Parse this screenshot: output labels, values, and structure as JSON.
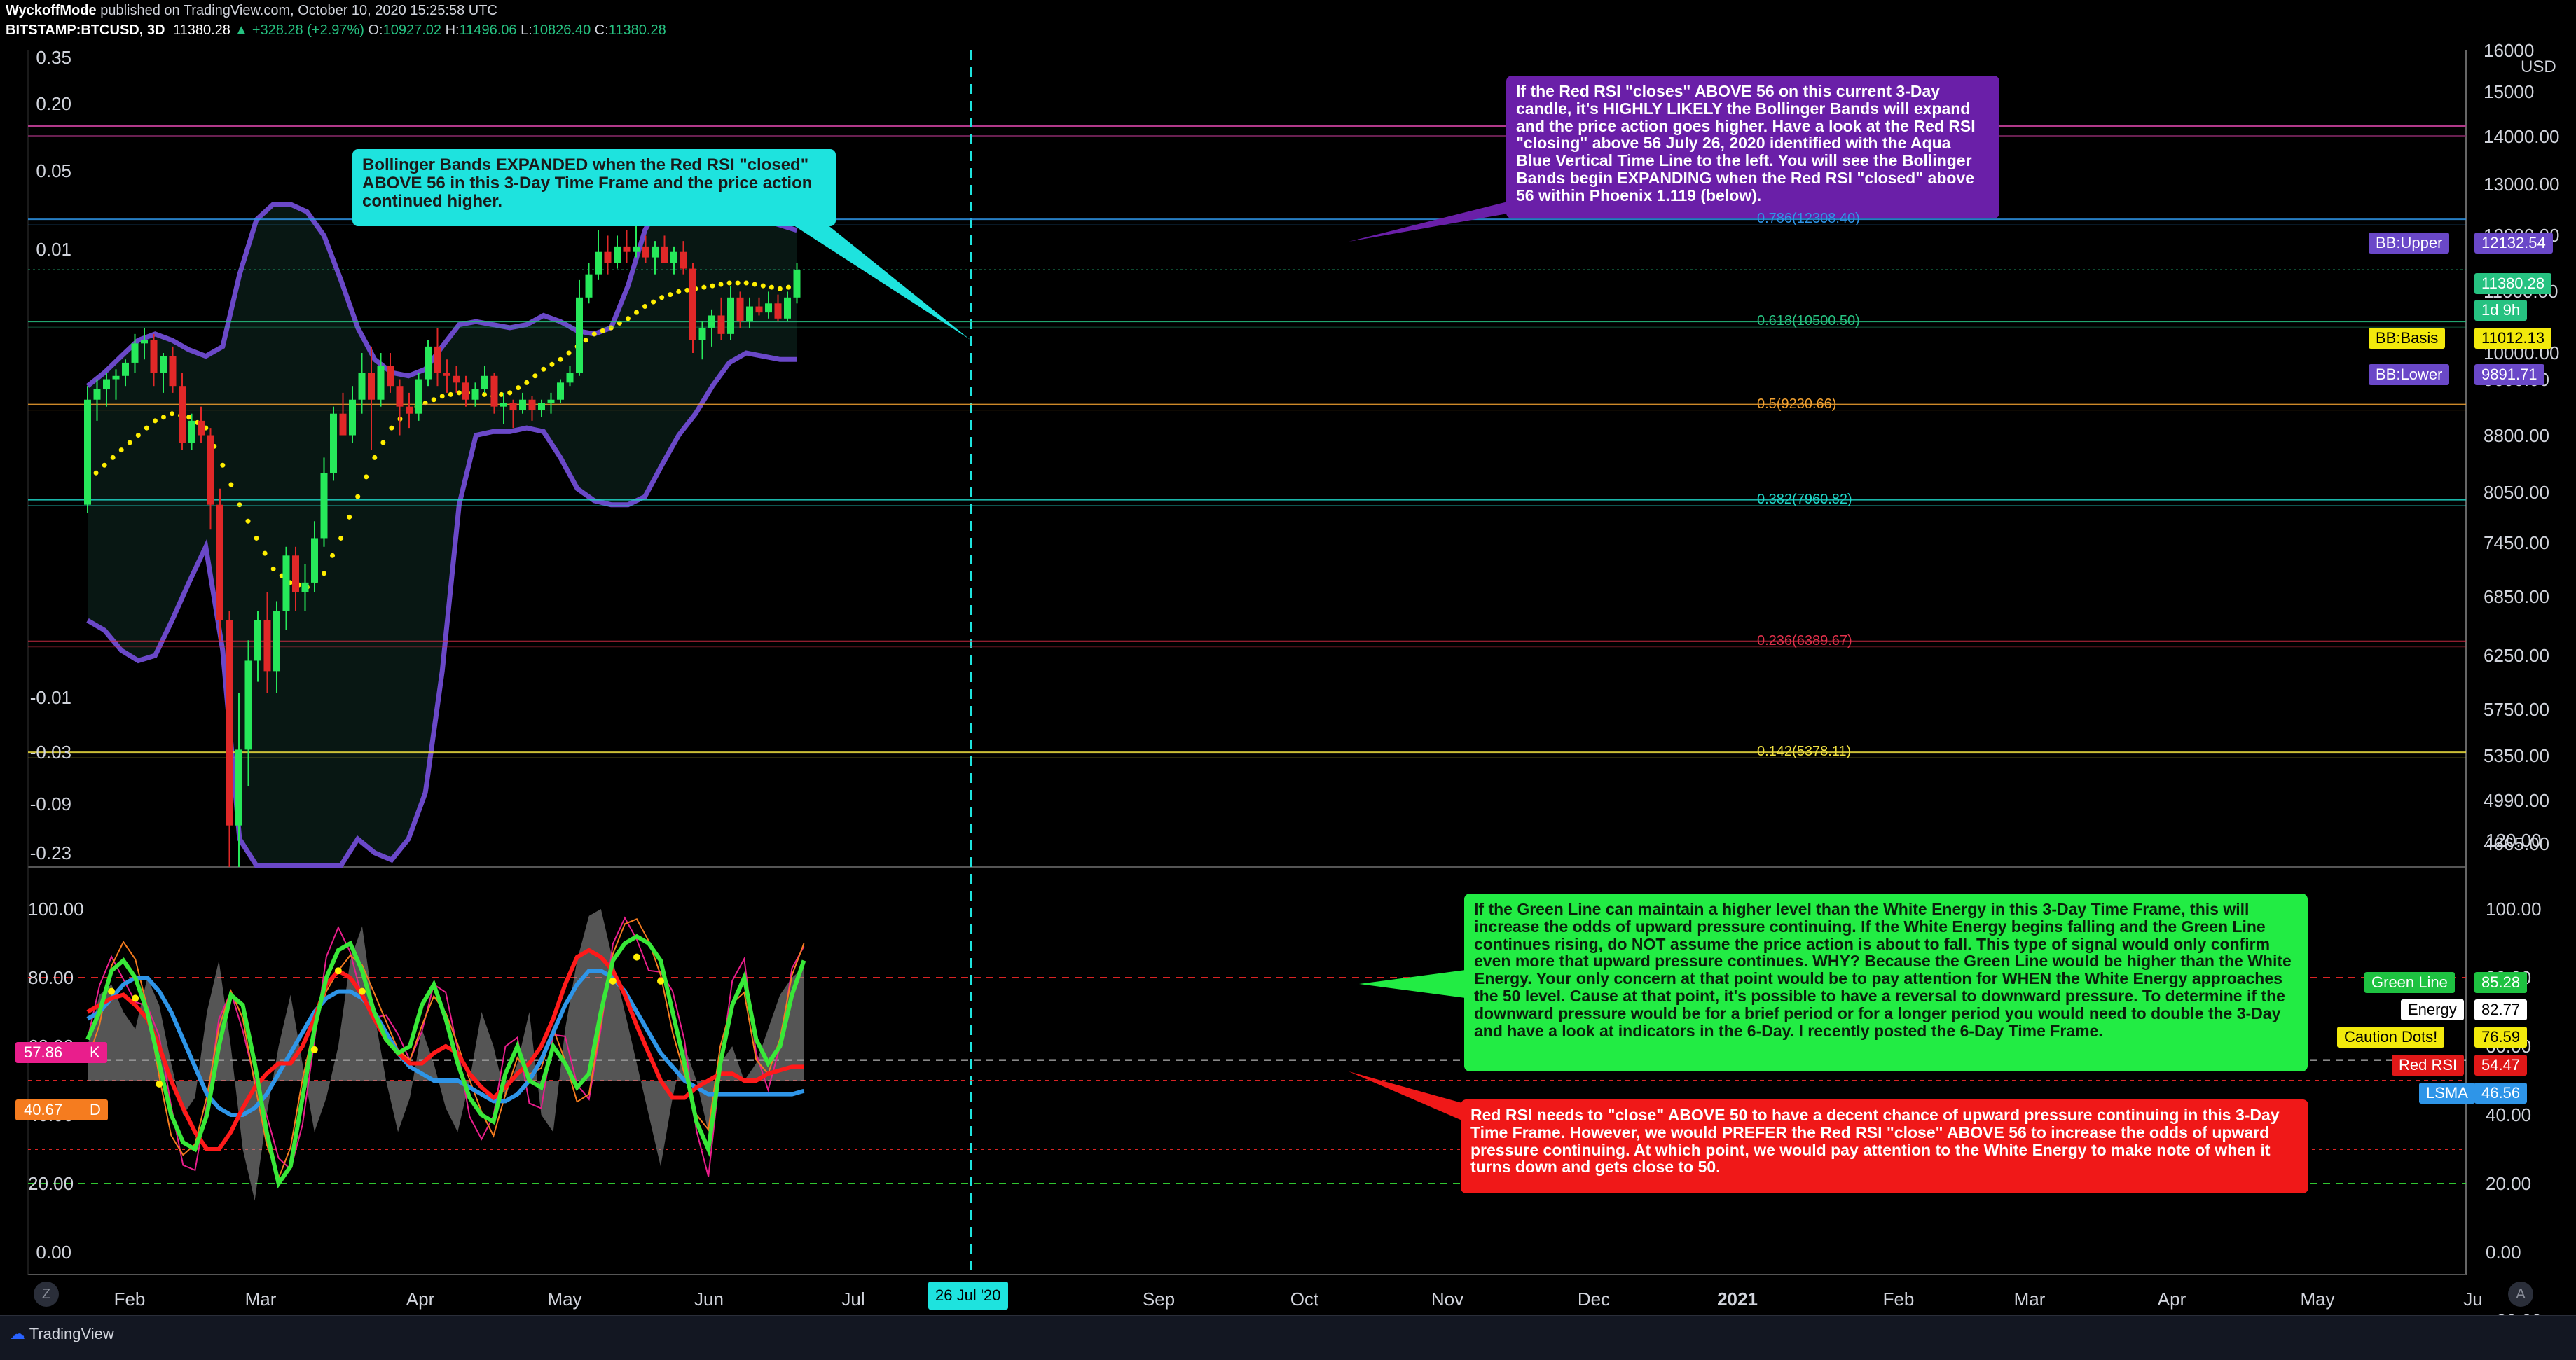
{
  "header": {
    "publisher": "WyckoffMode",
    "published_text": "published on TradingView.com, October 10, 2020 15:25:58 UTC",
    "symbol": "BITSTAMP:BTCUSD, 3D",
    "last": "11380.28",
    "change": "▲ +328.28 (+2.97%)",
    "o_label": "O:",
    "o": "10927.02",
    "h_label": "H:",
    "h": "11496.06",
    "l_label": "L:",
    "l": "10826.40",
    "c_label": "C:",
    "c": "11380.28"
  },
  "footer": {
    "brand": "TradingView",
    "left_circle": "Z",
    "right_circle": "A"
  },
  "colors": {
    "up": "#26e85a",
    "down": "#e02828",
    "band": "#6a48c8",
    "basis": "#ffee00",
    "green_line": "#38e838",
    "red_rsi": "#ff1a1a",
    "lsma": "#2e95e8",
    "energy": "#c8c8c8"
  },
  "chart_data": [
    {
      "type": "candlestick",
      "title": "BITSTAMP:BTCUSD, 3D",
      "x_axis": {
        "months": [
          "Feb",
          "Mar",
          "Apr",
          "May",
          "Jun",
          "Jul",
          "Sep",
          "Oct",
          "Nov",
          "Dec",
          "2021",
          "Feb",
          "Mar",
          "Apr",
          "May",
          "Ju"
        ]
      },
      "y_axis_right": {
        "scale": "log",
        "ticks": [
          "16000",
          "15000",
          "14000.00",
          "13000.00",
          "12000.00",
          "11000.00",
          "10000.00",
          "9600.00",
          "8800.00",
          "8050.00",
          "7450.00",
          "6850.00",
          "6250.00",
          "5750.00",
          "5350.00",
          "4990.00",
          "4665.00"
        ]
      },
      "y_axis_left": {
        "ticks": [
          "0.35",
          "0.20",
          "0.05",
          "0.01",
          "-0.01",
          "-0.03",
          "-0.09",
          "-0.23"
        ]
      },
      "candles": [
        [
          7900,
          9500,
          7800,
          9300
        ],
        [
          9300,
          9600,
          9000,
          9450
        ],
        [
          9450,
          9700,
          9200,
          9600
        ],
        [
          9600,
          9750,
          9300,
          9650
        ],
        [
          9650,
          9900,
          9500,
          9850
        ],
        [
          9850,
          10300,
          9700,
          10150
        ],
        [
          10150,
          10400,
          9900,
          10200
        ],
        [
          10200,
          10300,
          9500,
          9700
        ],
        [
          9700,
          10000,
          9400,
          9950
        ],
        [
          9950,
          10100,
          9400,
          9500
        ],
        [
          9500,
          9700,
          8600,
          8700
        ],
        [
          8700,
          9100,
          8600,
          9000
        ],
        [
          9000,
          9200,
          8700,
          8800
        ],
        [
          8800,
          8900,
          7600,
          7900
        ],
        [
          7900,
          8100,
          6400,
          6600
        ],
        [
          6600,
          6700,
          4100,
          4800
        ],
        [
          4800,
          5900,
          4500,
          5400
        ],
        [
          5400,
          6400,
          5100,
          6200
        ],
        [
          6200,
          6700,
          6000,
          6600
        ],
        [
          6600,
          6900,
          5900,
          6100
        ],
        [
          6100,
          6800,
          5900,
          6700
        ],
        [
          6700,
          7400,
          6500,
          7300
        ],
        [
          7300,
          7400,
          6700,
          6900
        ],
        [
          6900,
          7200,
          6700,
          7000
        ],
        [
          7000,
          7700,
          6900,
          7500
        ],
        [
          7500,
          8500,
          7400,
          8300
        ],
        [
          8300,
          9200,
          8200,
          9100
        ],
        [
          9100,
          9400,
          8800,
          8800
        ],
        [
          8800,
          9500,
          8700,
          9300
        ],
        [
          9300,
          10000,
          9100,
          9700
        ],
        [
          9700,
          10100,
          8600,
          9300
        ],
        [
          9300,
          10000,
          9200,
          9800
        ],
        [
          9800,
          10000,
          9400,
          9500
        ],
        [
          9500,
          9600,
          8800,
          9200
        ],
        [
          9200,
          9400,
          8900,
          9100
        ],
        [
          9100,
          9700,
          9000,
          9600
        ],
        [
          9600,
          10200,
          9500,
          10100
        ],
        [
          10100,
          10400,
          9500,
          9700
        ],
        [
          9700,
          9900,
          9400,
          9650
        ],
        [
          9650,
          9800,
          9400,
          9550
        ],
        [
          9550,
          9650,
          9200,
          9300
        ],
        [
          9300,
          9550,
          9200,
          9450
        ],
        [
          9450,
          9800,
          9400,
          9650
        ],
        [
          9650,
          9700,
          9100,
          9200
        ],
        [
          9200,
          9400,
          8950,
          9250
        ],
        [
          9250,
          9300,
          8900,
          9150
        ],
        [
          9150,
          9400,
          9100,
          9300
        ],
        [
          9300,
          9350,
          9000,
          9150
        ],
        [
          9150,
          9300,
          9050,
          9250
        ],
        [
          9250,
          9400,
          9100,
          9300
        ],
        [
          9300,
          9600,
          9250,
          9550
        ],
        [
          9550,
          9800,
          9500,
          9700
        ],
        [
          9700,
          11200,
          9650,
          10900
        ],
        [
          10900,
          11500,
          10800,
          11300
        ],
        [
          11300,
          12100,
          11200,
          11700
        ],
        [
          11700,
          12000,
          11300,
          11500
        ],
        [
          11500,
          12000,
          11400,
          11800
        ],
        [
          11800,
          12100,
          11500,
          11700
        ],
        [
          11700,
          12400,
          11600,
          11800
        ],
        [
          11800,
          12000,
          11500,
          11600
        ],
        [
          11600,
          11900,
          11300,
          11800
        ],
        [
          11800,
          12000,
          11500,
          11500
        ],
        [
          11500,
          11800,
          11300,
          11700
        ],
        [
          11700,
          11900,
          11300,
          11400
        ],
        [
          11400,
          11500,
          10000,
          10200
        ],
        [
          10200,
          10500,
          9900,
          10400
        ],
        [
          10400,
          10700,
          10100,
          10600
        ],
        [
          10600,
          10900,
          10200,
          10300
        ],
        [
          10300,
          11100,
          10200,
          10900
        ],
        [
          10900,
          11000,
          10400,
          10500
        ],
        [
          10500,
          10900,
          10400,
          10750
        ],
        [
          10750,
          10900,
          10600,
          10650
        ],
        [
          10650,
          11000,
          10550,
          10800
        ],
        [
          10800,
          10950,
          10500,
          10550
        ],
        [
          10550,
          11000,
          10500,
          10900
        ],
        [
          10900,
          11500,
          10800,
          11380
        ]
      ],
      "bollinger": {
        "upper": [
          9500,
          9700,
          9950,
          10200,
          10300,
          10200,
          10050,
          9950,
          10100,
          11300,
          12300,
          12600,
          12600,
          12450,
          12000,
          11200,
          10400,
          9900,
          9700,
          9650,
          9750,
          10100,
          10450,
          10500,
          10450,
          10400,
          10450,
          10600,
          10500,
          10350,
          10300,
          10400,
          11100,
          12100,
          12700,
          13000,
          13000,
          12900,
          12600,
          12450,
          12300,
          12200,
          12100
        ],
        "basis": [
          8200,
          8400,
          8600,
          8800,
          9000,
          9100,
          9050,
          8900,
          8400,
          7900,
          7500,
          7150,
          7000,
          6950,
          7100,
          7500,
          8000,
          8500,
          8900,
          9150,
          9250,
          9350,
          9400,
          9400,
          9350,
          9400,
          9550,
          9750,
          9900,
          10100,
          10300,
          10400,
          10550,
          10750,
          10900,
          11000,
          11050,
          11100,
          11150,
          11150,
          11100,
          11050,
          11100
        ],
        "lower": [
          6600,
          6500,
          6300,
          6200,
          6250,
          6600,
          7000,
          7400,
          6300,
          4700,
          3900,
          3700,
          3800,
          4000,
          4200,
          4500,
          4700,
          4600,
          4550,
          4700,
          5050,
          6100,
          7900,
          8800,
          8850,
          8850,
          8900,
          8850,
          8500,
          8100,
          7950,
          7900,
          7900,
          8000,
          8400,
          8800,
          9100,
          9500,
          9850,
          10000,
          9950,
          9900,
          9900
        ]
      },
      "fib_levels": [
        {
          "label": "0.786(12308.40)",
          "color": "#2e95e8",
          "v": 12308.4
        },
        {
          "label": "0.618(10500.50)",
          "color": "#26c281",
          "v": 10500.5
        },
        {
          "label": "0.5(9230.66)",
          "color": "#f0a030",
          "v": 9230.66
        },
        {
          "label": "0.382(7960.82)",
          "color": "#1fd6c8",
          "v": 7960.82
        },
        {
          "label": "0.236(6389.67)",
          "color": "#e0304a",
          "v": 6389.67
        },
        {
          "label": "0.142(5378.11)",
          "color": "#f0e040",
          "v": 5378.11
        }
      ],
      "price_badges": [
        {
          "label": "BB:Upper",
          "value": "12132.54",
          "bg": "#6a48c8",
          "fg": "#ffffff"
        },
        {
          "label": "",
          "value": "11380.28",
          "bg": "#26c281",
          "fg": "#ffffff"
        },
        {
          "label": "",
          "value": "1d 9h",
          "bg": "#26c281",
          "fg": "#ffffff"
        },
        {
          "label": "BB:Basis",
          "value": "11012.13",
          "bg": "#f2e90c",
          "fg": "#000000"
        },
        {
          "label": "BB:Lower",
          "value": "9891.71",
          "bg": "#6a48c8",
          "fg": "#ffffff"
        }
      ],
      "vertical_marker": "26 Jul '20"
    },
    {
      "type": "line",
      "name": "Oscillator (Phoenix)",
      "y_axis_right": {
        "ticks": [
          "120.00",
          "100.00",
          "80.00",
          "60.00",
          "40.00",
          "20.00",
          "0.00",
          "−20.00"
        ]
      },
      "y_axis_left": {
        "ticks": [
          "100.00",
          "80.00",
          "60.00",
          "40.00",
          "20.00",
          "0.00"
        ]
      },
      "series": [
        {
          "name": "Green Line",
          "value": "85.28",
          "values": [
            62,
            70,
            82,
            85,
            80,
            70,
            55,
            40,
            32,
            30,
            40,
            60,
            75,
            72,
            55,
            35,
            20,
            25,
            45,
            65,
            80,
            88,
            90,
            82,
            70,
            62,
            58,
            60,
            72,
            78,
            68,
            55,
            45,
            40,
            38,
            52,
            60,
            50,
            48,
            60,
            55,
            48,
            52,
            70,
            85,
            90,
            92,
            90,
            85,
            70,
            55,
            38,
            30,
            55,
            72,
            80,
            62,
            55,
            60,
            75,
            85
          ]
        },
        {
          "name": "Energy",
          "value": "82.77",
          "values": [
            60,
            75,
            78,
            70,
            65,
            80,
            72,
            55,
            40,
            45,
            70,
            85,
            60,
            30,
            15,
            40,
            60,
            75,
            55,
            35,
            45,
            60,
            85,
            95,
            70,
            50,
            35,
            45,
            65,
            55,
            42,
            35,
            50,
            70,
            60,
            45,
            55,
            70,
            40,
            35,
            65,
            85,
            98,
            100,
            85,
            70,
            55,
            40,
            25,
            45,
            60,
            50,
            35,
            55,
            60,
            50,
            55,
            65,
            75,
            80,
            83
          ]
        },
        {
          "name": "Red RSI",
          "value": "54.47",
          "values": [
            70,
            72,
            74,
            75,
            72,
            68,
            60,
            50,
            42,
            35,
            30,
            30,
            35,
            42,
            48,
            52,
            55,
            55,
            60,
            68,
            78,
            82,
            80,
            75,
            68,
            62,
            58,
            55,
            55,
            58,
            60,
            58,
            52,
            48,
            45,
            48,
            52,
            55,
            60,
            68,
            78,
            86,
            88,
            86,
            82,
            75,
            66,
            58,
            50,
            45,
            45,
            48,
            50,
            52,
            52,
            50,
            50,
            52,
            53,
            54,
            54
          ]
        },
        {
          "name": "Caution Dots!",
          "value": "76.59",
          "values": []
        },
        {
          "name": "LSMA",
          "value": "46.56",
          "values": [
            68,
            70,
            74,
            78,
            80,
            80,
            76,
            70,
            62,
            54,
            46,
            42,
            40,
            40,
            42,
            46,
            52,
            58,
            64,
            70,
            74,
            76,
            76,
            74,
            70,
            64,
            58,
            54,
            52,
            50,
            50,
            50,
            48,
            46,
            44,
            44,
            46,
            50,
            56,
            64,
            72,
            78,
            82,
            82,
            80,
            76,
            70,
            64,
            58,
            54,
            50,
            48,
            46,
            46,
            46,
            46,
            46,
            46,
            46,
            46,
            47
          ]
        }
      ],
      "left_badges": [
        {
          "label": "57.86",
          "tag": "K",
          "bg": "#e91e8c"
        },
        {
          "label": "40.67",
          "tag": "D",
          "bg": "#f57c1f"
        }
      ],
      "levels": [
        80,
        56,
        50,
        30,
        20
      ]
    }
  ],
  "annotations": {
    "bollinger_note": "Bollinger Bands EXPANDED when the Red RSI \"closed\" ABOVE 56 in this 3-Day Time Frame and the price action continued higher.",
    "red_rsi_closes_note": "If the Red RSI \"closes\" ABOVE 56 on this current 3-Day candle, it's HIGHLY LIKELY the Bollinger Bands will expand and the price action goes higher.  Have a look at the Red RSI \"closing\" above 56 July 26, 2020 identified with the Aqua Blue Vertical Time Line to the left.  You will see the Bollinger Bands begin EXPANDING when the Red RSI \"closed\" above 56 within Phoenix 1.119 (below).",
    "green_line_note": "If the Green Line can maintain a higher level than the White Energy in this 3-Day Time Frame, this will increase the odds of upward pressure continuing.  If the White Energy begins falling and the Green Line continues rising, do NOT assume the price action is about to fall.  This type of signal would only confirm even more that upward pressure continues.  WHY?  Because the Green Line would be higher than the White Energy.  Your only concern at that point would be to pay attention for WHEN the White Energy approaches the 50 level.  Cause at that point, it's possible to have a reversal to downward pressure.  To determine if the downward pressure would be for a brief period or for a longer period you would need to double the 3-Day and have a look at indicators in the 6-Day.  I recently posted the 6-Day Time Frame.",
    "red_rsi_note": "Red RSI needs to \"close\" ABOVE 50 to have a decent chance of upward pressure continuing in this 3-Day Time Frame.  However, we would PREFER the Red RSI \"close\" ABOVE 56 to increase the odds of upward pressure continuing.  At which point, we would pay attention to the White Energy to make note of when it turns down and gets close to 50."
  }
}
